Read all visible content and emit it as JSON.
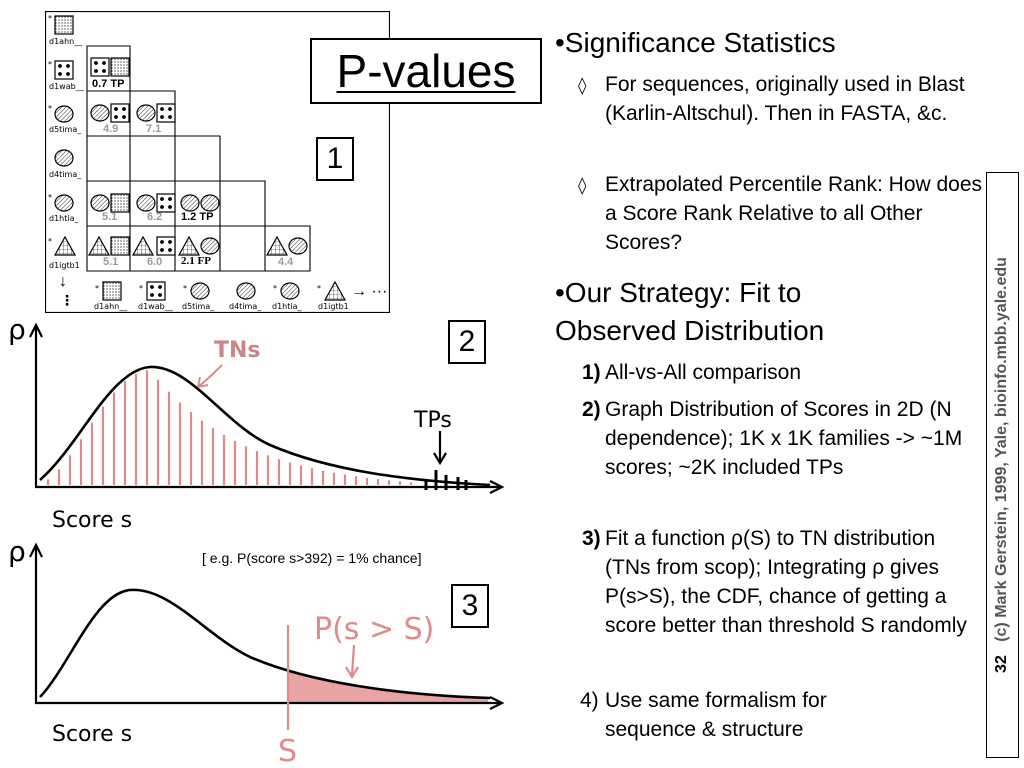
{
  "slide": {
    "title": "P-values",
    "box_numbers": [
      "1",
      "2",
      "3"
    ],
    "page_number": "32",
    "credit": "(c) Mark Gerstein, 1999, Yale, bioinfo.mbb.yale.edu"
  },
  "matrix": {
    "row_labels": [
      "d1ahn__",
      "d1wab__",
      "d5tima_",
      "d4tima_",
      "d1htia_",
      "d1igtb1"
    ],
    "col_labels": [
      "d1ahn__",
      "d1wab__",
      "d5tima_",
      "d4tima_",
      "d1htia_",
      "d1igtb1"
    ],
    "star": "*",
    "arrow_right": "→ ···",
    "arrow_down": "↓",
    "dots": "⋮",
    "scores": {
      "r2c1": "0.7 TP",
      "r3c1": "4.9",
      "r3c2": "7.1",
      "r5c1": "5.1",
      "r5c2": "6.2",
      "r5c3": "1.2 TP",
      "r6c1": "5.1",
      "r6c2": "6.0",
      "r6c3": "2.1 FP",
      "r6c5": "4.4"
    }
  },
  "plots": {
    "rho": "ρ",
    "score_label": "Score s",
    "tns": "TNs",
    "tps": "TPs",
    "p_label": "P(s > S)",
    "threshold": "S",
    "example": "[ e.g. P(score s>392) = 1% chance]"
  },
  "text": {
    "b1": "•Significance Statistics",
    "b1_subs": [
      "For sequences, originally used in Blast (Karlin-Altschul). Then in FASTA, &c.",
      "Extrapolated Percentile Rank: How does a Score Rank Relative to all Other Scores?"
    ],
    "diamond": "◊",
    "b2": "•Our Strategy: Fit to Observed Distribution",
    "steps": [
      {
        "n": "1)",
        "t": "All-vs-All comparison"
      },
      {
        "n": "2)",
        "t": "Graph Distribution of Scores in 2D (N dependence); 1K x 1K families -> ~1M scores; ~2K included TPs"
      },
      {
        "n": "3)",
        "t": "Fit a function ρ(S) to TN distribution (TNs from scop); Integrating ρ gives P(s>S), the CDF, chance of getting a score better than threshold S randomly"
      }
    ],
    "step4_n": "4)",
    "step4_t": "Use same formalism for sequence & structure"
  }
}
